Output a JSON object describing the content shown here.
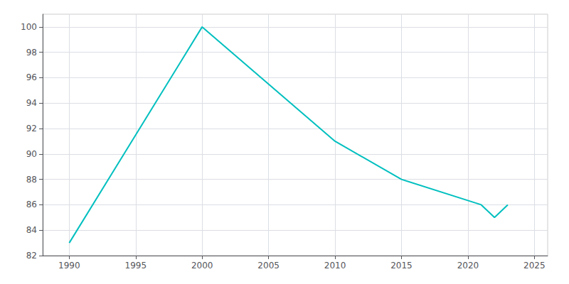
{
  "chart_data": {
    "type": "line",
    "x": [
      1990,
      2000,
      2010,
      2015,
      2021,
      2022,
      2023
    ],
    "values": [
      83,
      100,
      91,
      88,
      86,
      85,
      86
    ],
    "color": "#00BFBF",
    "xlim": [
      1988,
      2026
    ],
    "ylim": [
      82,
      101
    ],
    "xticks": [
      1990,
      1995,
      2000,
      2005,
      2010,
      2015,
      2020,
      2025
    ],
    "yticks": [
      82,
      84,
      86,
      88,
      90,
      92,
      94,
      96,
      98,
      100
    ],
    "grid": true
  }
}
